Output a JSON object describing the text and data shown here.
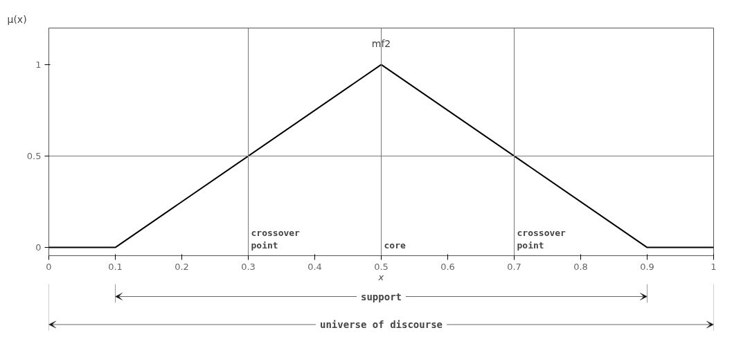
{
  "chart_data": {
    "type": "line",
    "title": "mf2",
    "xlabel": "x",
    "ylabel": "μ(x)",
    "x": [
      0,
      0.1,
      0.5,
      0.9,
      1
    ],
    "series": [
      {
        "color": "#000000",
        "values": [
          0,
          0,
          1,
          0,
          0
        ]
      }
    ],
    "xlim": [
      0,
      1
    ],
    "ylim": [
      -0.045,
      1.2
    ],
    "xticks": [
      0,
      0.1,
      0.2,
      0.3,
      0.4,
      0.5,
      0.6,
      0.7,
      0.8,
      0.9,
      1
    ],
    "yticks": [
      0,
      0.5,
      1
    ],
    "grid": false,
    "marker": "none",
    "line_style": "solid",
    "ref_lines": [
      {
        "axis": "y",
        "value": 0.5
      },
      {
        "axis": "x",
        "value": 0.3,
        "label": "crossover\npoint"
      },
      {
        "axis": "x",
        "value": 0.5,
        "label": "core"
      },
      {
        "axis": "x",
        "value": 0.7,
        "label": "crossover\npoint"
      }
    ],
    "annotations": [
      "support",
      "universe of discourse"
    ]
  }
}
